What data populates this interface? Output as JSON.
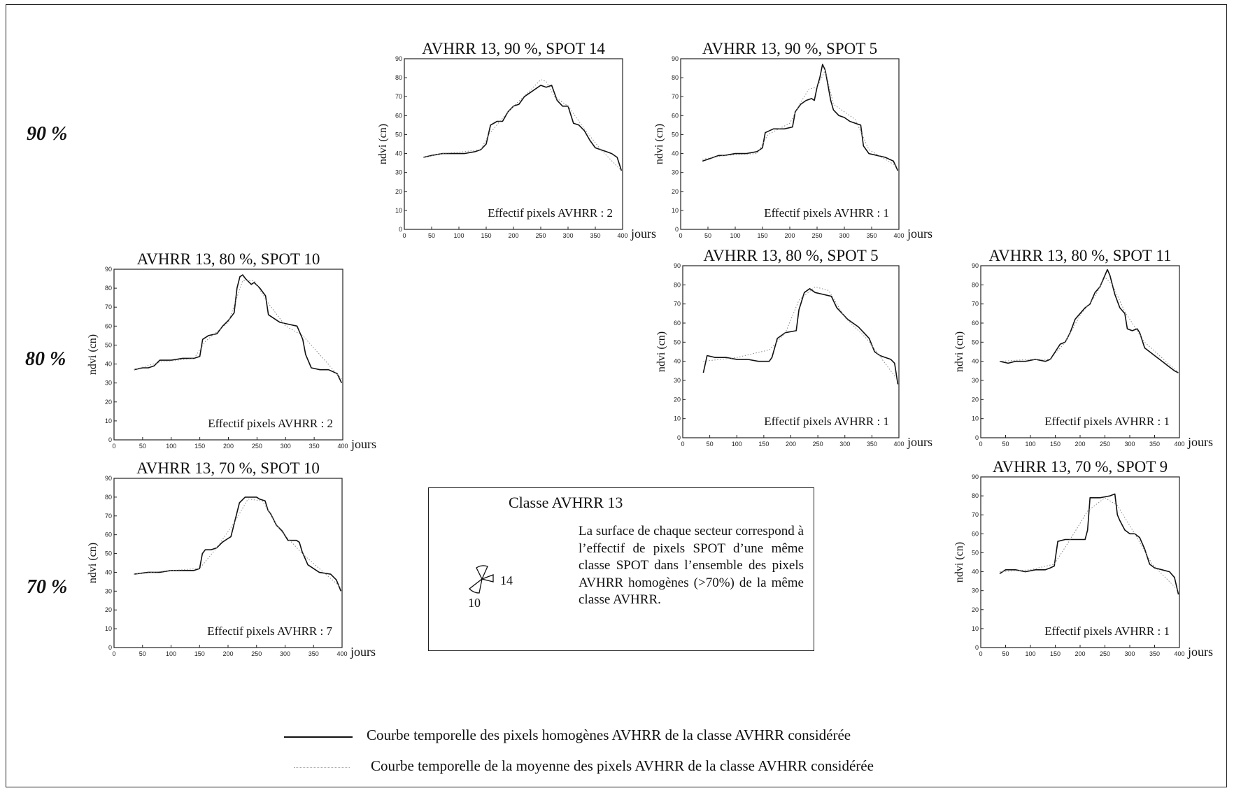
{
  "row_labels": [
    "90 %",
    "80 %",
    "70 %"
  ],
  "chart_data": [
    {
      "type": "line",
      "title": "AVHRR 13, 90 %, SPOT 14",
      "ylabel": "ndvi (cn)",
      "xlabel": "jours",
      "xlim": [
        0,
        400
      ],
      "ylim": [
        0,
        90
      ],
      "xticks": [
        0,
        50,
        100,
        150,
        200,
        250,
        300,
        350,
        400
      ],
      "yticks": [
        0,
        10,
        20,
        30,
        40,
        50,
        60,
        70,
        80,
        90
      ],
      "annotation": "Effectif pixels AVHRR : 2",
      "series": [
        {
          "style": "solid",
          "x": [
            35,
            50,
            70,
            90,
            110,
            130,
            140,
            150,
            158,
            170,
            180,
            190,
            200,
            210,
            220,
            230,
            240,
            250,
            260,
            270,
            280,
            290,
            300,
            310,
            320,
            330,
            340,
            350,
            360,
            370,
            380,
            390,
            398
          ],
          "y": [
            38,
            39,
            40,
            40,
            40,
            41,
            42,
            45,
            55,
            57,
            57,
            62,
            65,
            66,
            70,
            72,
            74,
            76,
            75,
            76,
            68,
            65,
            65,
            56,
            55,
            52,
            47,
            43,
            42,
            41,
            40,
            38,
            31
          ]
        },
        {
          "style": "dotted",
          "x": [
            35,
            70,
            110,
            140,
            155,
            175,
            200,
            230,
            250,
            260,
            275,
            300,
            330,
            360,
            398
          ],
          "y": [
            38,
            40,
            41,
            42,
            50,
            57,
            65,
            73,
            79,
            78,
            70,
            65,
            53,
            42,
            31
          ]
        }
      ]
    },
    {
      "type": "line",
      "title": "AVHRR 13, 90 %, SPOT 5",
      "ylabel": "ndvi (cn)",
      "xlabel": "jours",
      "xlim": [
        0,
        400
      ],
      "ylim": [
        0,
        90
      ],
      "xticks": [
        0,
        50,
        100,
        150,
        200,
        250,
        300,
        350,
        400
      ],
      "yticks": [
        0,
        10,
        20,
        30,
        40,
        50,
        60,
        70,
        80,
        90
      ],
      "annotation": "Effectif pixels AVHRR : 1",
      "series": [
        {
          "style": "solid",
          "x": [
            40,
            50,
            60,
            70,
            80,
            100,
            120,
            140,
            150,
            155,
            170,
            190,
            205,
            210,
            220,
            230,
            240,
            245,
            250,
            255,
            260,
            265,
            270,
            275,
            280,
            290,
            300,
            310,
            320,
            330,
            335,
            345,
            360,
            375,
            390,
            398
          ],
          "y": [
            36,
            37,
            38,
            39,
            39,
            40,
            40,
            41,
            43,
            51,
            53,
            53,
            54,
            62,
            66,
            68,
            69,
            68,
            75,
            80,
            87,
            84,
            76,
            68,
            63,
            60,
            59,
            57,
            56,
            55,
            44,
            40,
            39,
            38,
            36,
            31
          ]
        },
        {
          "style": "dotted",
          "x": [
            40,
            80,
            140,
            160,
            200,
            220,
            235,
            250,
            265,
            280,
            320,
            345,
            398
          ],
          "y": [
            37,
            39,
            40,
            50,
            56,
            67,
            74,
            75,
            84,
            66,
            58,
            42,
            33
          ]
        }
      ]
    },
    {
      "type": "line",
      "title": "AVHRR 13, 80 %, SPOT 10",
      "ylabel": "ndvi (cn)",
      "xlabel": "jours",
      "xlim": [
        0,
        400
      ],
      "ylim": [
        0,
        90
      ],
      "xticks": [
        0,
        50,
        100,
        150,
        200,
        250,
        300,
        350,
        400
      ],
      "yticks": [
        0,
        10,
        20,
        30,
        40,
        50,
        60,
        70,
        80,
        90
      ],
      "annotation": "Effectif pixels AVHRR : 2",
      "series": [
        {
          "style": "solid",
          "x": [
            35,
            50,
            60,
            70,
            80,
            100,
            120,
            140,
            150,
            155,
            165,
            180,
            190,
            200,
            210,
            215,
            220,
            225,
            230,
            240,
            245,
            255,
            265,
            270,
            275,
            290,
            305,
            320,
            330,
            335,
            345,
            360,
            375,
            390,
            398
          ],
          "y": [
            37,
            38,
            38,
            39,
            42,
            42,
            43,
            43,
            44,
            53,
            55,
            56,
            60,
            63,
            67,
            80,
            86,
            87,
            85,
            82,
            83,
            80,
            76,
            66,
            65,
            62,
            61,
            60,
            53,
            45,
            38,
            37,
            37,
            35,
            30
          ]
        },
        {
          "style": "dotted",
          "x": [
            35,
            80,
            140,
            160,
            200,
            225,
            245,
            270,
            300,
            330,
            398
          ],
          "y": [
            37,
            41,
            43,
            52,
            62,
            84,
            84,
            72,
            60,
            55,
            32
          ]
        }
      ]
    },
    {
      "type": "line",
      "title": "AVHRR 13, 80 %, SPOT 5",
      "ylabel": "ndvi (cn)",
      "xlabel": "jours",
      "xlim": [
        0,
        400
      ],
      "ylim": [
        0,
        90
      ],
      "xticks": [
        0,
        50,
        100,
        150,
        200,
        250,
        300,
        350,
        400
      ],
      "yticks": [
        0,
        10,
        20,
        30,
        40,
        50,
        60,
        70,
        80,
        90
      ],
      "annotation": "Effectif pixels AVHRR : 1",
      "series": [
        {
          "style": "solid",
          "x": [
            38,
            45,
            60,
            80,
            100,
            120,
            140,
            160,
            165,
            175,
            190,
            210,
            215,
            225,
            235,
            245,
            260,
            275,
            285,
            295,
            305,
            315,
            325,
            335,
            345,
            355,
            365,
            375,
            385,
            392,
            398
          ],
          "y": [
            34,
            43,
            42,
            42,
            41,
            41,
            40,
            40,
            42,
            52,
            55,
            56,
            67,
            76,
            78,
            76,
            75,
            74,
            68,
            65,
            62,
            60,
            58,
            55,
            52,
            45,
            43,
            42,
            41,
            39,
            28
          ]
        },
        {
          "style": "dotted",
          "x": [
            38,
            100,
            160,
            190,
            215,
            245,
            270,
            300,
            340,
            398
          ],
          "y": [
            40,
            42,
            46,
            55,
            72,
            79,
            77,
            63,
            52,
            30
          ]
        }
      ]
    },
    {
      "type": "line",
      "title": "AVHRR 13, 80 %, SPOT 11",
      "ylabel": "ndvi (cn)",
      "xlabel": "jours",
      "xlim": [
        0,
        400
      ],
      "ylim": [
        0,
        90
      ],
      "xticks": [
        0,
        50,
        100,
        150,
        200,
        250,
        300,
        350,
        400
      ],
      "yticks": [
        0,
        10,
        20,
        30,
        40,
        50,
        60,
        70,
        80,
        90
      ],
      "annotation": "Effectif pixels AVHRR : 1",
      "series": [
        {
          "style": "solid",
          "x": [
            38,
            55,
            70,
            90,
            110,
            130,
            140,
            150,
            160,
            170,
            180,
            190,
            200,
            210,
            220,
            230,
            240,
            250,
            255,
            260,
            270,
            280,
            290,
            295,
            305,
            315,
            320,
            330,
            340,
            350,
            360,
            370,
            380,
            390,
            398
          ],
          "y": [
            40,
            39,
            40,
            40,
            41,
            40,
            41,
            45,
            49,
            50,
            55,
            62,
            65,
            68,
            70,
            76,
            79,
            85,
            88,
            85,
            75,
            68,
            65,
            57,
            56,
            57,
            55,
            47,
            45,
            43,
            41,
            39,
            37,
            35,
            34
          ]
        },
        {
          "style": "dotted",
          "x": [
            38,
            100,
            140,
            170,
            200,
            230,
            250,
            265,
            290,
            330,
            398
          ],
          "y": [
            40,
            41,
            41,
            50,
            64,
            74,
            84,
            80,
            66,
            50,
            34
          ]
        }
      ]
    },
    {
      "type": "line",
      "title": "AVHRR 13, 70 %, SPOT 10",
      "ylabel": "ndvi (cn)",
      "xlabel": "jours",
      "xlim": [
        0,
        400
      ],
      "ylim": [
        0,
        90
      ],
      "xticks": [
        0,
        50,
        100,
        150,
        200,
        250,
        300,
        350,
        400
      ],
      "yticks": [
        0,
        10,
        20,
        30,
        40,
        50,
        60,
        70,
        80,
        90
      ],
      "annotation": "Effectif pixels AVHRR : 7",
      "series": [
        {
          "style": "solid",
          "x": [
            35,
            60,
            80,
            100,
            120,
            140,
            150,
            155,
            160,
            170,
            180,
            190,
            200,
            205,
            210,
            220,
            230,
            240,
            250,
            255,
            265,
            270,
            275,
            285,
            295,
            305,
            320,
            325,
            330,
            340,
            360,
            380,
            390,
            398
          ],
          "y": [
            39,
            40,
            40,
            41,
            41,
            41,
            42,
            50,
            52,
            52,
            53,
            56,
            58,
            59,
            65,
            77,
            80,
            80,
            80,
            79,
            78,
            73,
            71,
            65,
            62,
            57,
            57,
            56,
            51,
            44,
            40,
            39,
            36,
            30
          ]
        },
        {
          "style": "dotted",
          "x": [
            35,
            100,
            150,
            180,
            210,
            235,
            260,
            290,
            330,
            398
          ],
          "y": [
            39,
            41,
            42,
            53,
            66,
            79,
            78,
            63,
            50,
            32
          ]
        }
      ]
    },
    {
      "type": "line",
      "title": "AVHRR 13, 70 %, SPOT 9",
      "ylabel": "ndvi (cn)",
      "xlabel": "jours",
      "xlim": [
        0,
        400
      ],
      "ylim": [
        0,
        90
      ],
      "xticks": [
        0,
        50,
        100,
        150,
        200,
        250,
        300,
        350,
        400
      ],
      "yticks": [
        0,
        10,
        20,
        30,
        40,
        50,
        60,
        70,
        80,
        90
      ],
      "annotation": "Effectif pixels AVHRR : 1",
      "series": [
        {
          "style": "solid",
          "x": [
            38,
            50,
            70,
            90,
            110,
            130,
            140,
            148,
            155,
            170,
            190,
            210,
            215,
            220,
            240,
            260,
            270,
            275,
            280,
            290,
            300,
            310,
            320,
            330,
            340,
            350,
            365,
            380,
            390,
            398
          ],
          "y": [
            39,
            41,
            41,
            40,
            41,
            41,
            42,
            43,
            56,
            57,
            57,
            57,
            62,
            79,
            79,
            80,
            81,
            70,
            67,
            62,
            60,
            60,
            58,
            52,
            44,
            42,
            41,
            40,
            37,
            28
          ]
        },
        {
          "style": "dotted",
          "x": [
            38,
            100,
            148,
            180,
            215,
            250,
            275,
            310,
            345,
            398
          ],
          "y": [
            40,
            41,
            44,
            57,
            72,
            79,
            75,
            60,
            44,
            30
          ]
        }
      ]
    }
  ],
  "legend_box": {
    "title": "Classe AVHRR 13",
    "text": "La surface de chaque secteur correspond à l’effectif de pixels SPOT d’une même classe SPOT dans l’ensemble des pixels AVHRR homogènes (>70%) de la même classe AVHRR.",
    "pie_labels": [
      "14",
      "10"
    ]
  },
  "key": {
    "solid": "Courbe temporelle des pixels homogènes AVHRR de la classe AVHRR considérée",
    "dotted": "Courbe temporelle de la moyenne des pixels AVHRR de la classe AVHRR considérée"
  }
}
